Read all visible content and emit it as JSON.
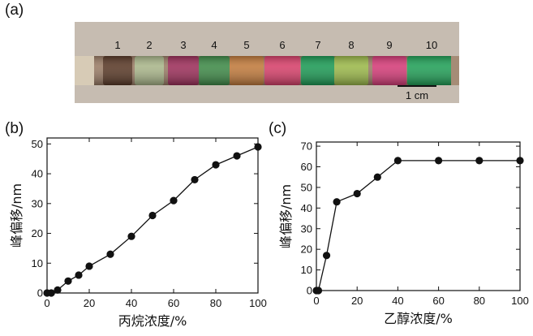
{
  "panels": {
    "a": "(a)",
    "b": "(b)",
    "c": "(c)"
  },
  "photo": {
    "labels": [
      "1",
      "2",
      "3",
      "4",
      "5",
      "6",
      "7",
      "8",
      "9",
      "10"
    ],
    "scale_bar": "1 cm",
    "segment_colors": [
      "#5a3a28",
      "#a9b58a",
      "#9c2f5a",
      "#3f8a48",
      "#c07a3c",
      "#d6406a",
      "#1d9a55",
      "#9bb84a",
      "#d43c78",
      "#22a058"
    ],
    "frame_color": "#c6bcb1",
    "gap_color": "#9a7c66"
  },
  "chart_data": [
    {
      "type": "line",
      "title": "",
      "xlabel": "丙烷浓度/%",
      "ylabel": "峰偏移/nm",
      "xlim": [
        0,
        100
      ],
      "ylim": [
        0,
        52
      ],
      "xticks": [
        0,
        20,
        40,
        60,
        80,
        100
      ],
      "yticks": [
        0,
        10,
        20,
        30,
        40,
        50
      ],
      "x": [
        0,
        2,
        5,
        10,
        15,
        20,
        30,
        40,
        50,
        60,
        70,
        80,
        90,
        100
      ],
      "y": [
        0,
        0,
        1,
        4,
        6,
        9,
        13,
        19,
        26,
        31,
        38,
        43,
        46,
        49
      ],
      "marker": "circle"
    },
    {
      "type": "line",
      "title": "",
      "xlabel": "乙醇浓度/%",
      "ylabel": "峰偏移/nm",
      "xlim": [
        0,
        100
      ],
      "ylim": [
        0,
        72
      ],
      "xticks": [
        0,
        20,
        40,
        60,
        80,
        100
      ],
      "yticks": [
        0,
        10,
        20,
        30,
        40,
        50,
        60,
        70
      ],
      "x": [
        0,
        1,
        5,
        10,
        20,
        30,
        40,
        60,
        80,
        100
      ],
      "y": [
        0,
        0,
        17,
        43,
        47,
        55,
        63,
        63,
        63,
        63
      ],
      "marker": "circle"
    }
  ]
}
